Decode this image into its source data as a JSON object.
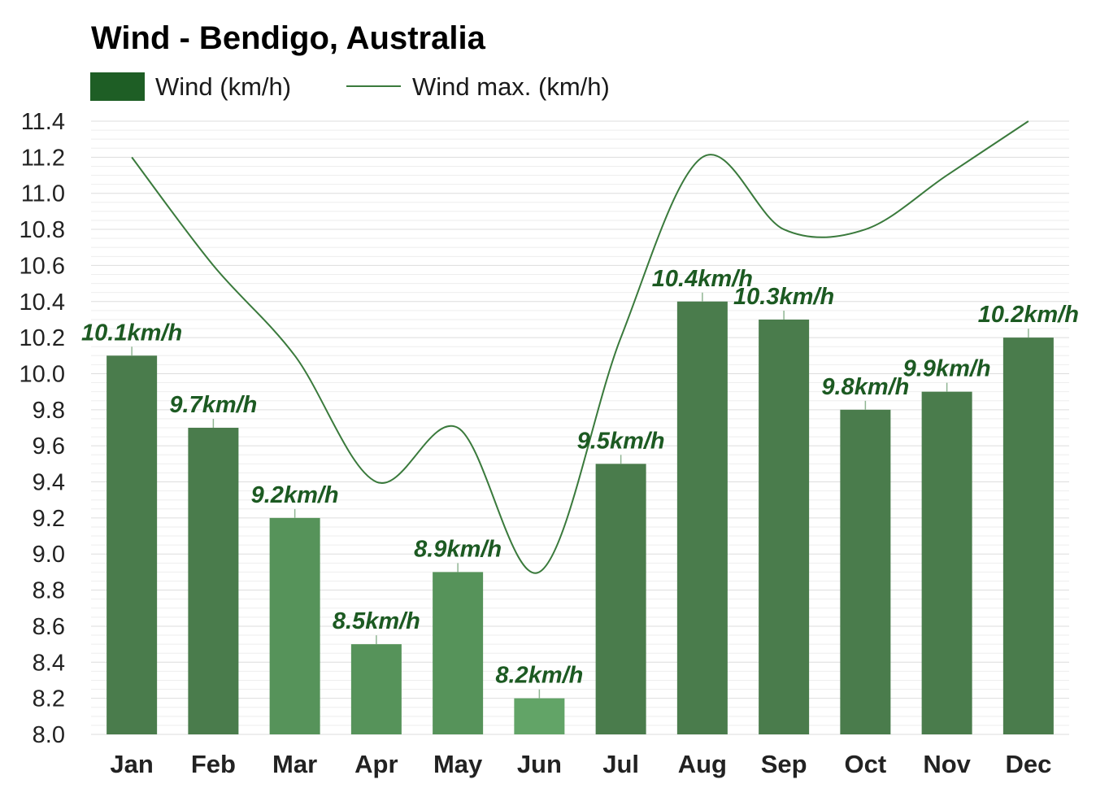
{
  "chart_data": {
    "type": "bar",
    "title": "Wind - Bendigo, Australia",
    "categories": [
      "Jan",
      "Feb",
      "Mar",
      "Apr",
      "May",
      "Jun",
      "Jul",
      "Aug",
      "Sep",
      "Oct",
      "Nov",
      "Dec"
    ],
    "series": [
      {
        "name": "Wind (km/h)",
        "type": "bar",
        "values": [
          10.1,
          9.7,
          9.2,
          8.5,
          8.9,
          8.2,
          9.5,
          10.4,
          10.3,
          9.8,
          9.9,
          10.2
        ],
        "labels": [
          "10.1km/h",
          "9.7km/h",
          "9.2km/h",
          "8.5km/h",
          "8.9km/h",
          "8.2km/h",
          "9.5km/h",
          "10.4km/h",
          "10.3km/h",
          "9.8km/h",
          "9.9km/h",
          "10.2km/h"
        ],
        "colors": [
          "#4a7c4c",
          "#4a7c4c",
          "#56935a",
          "#56935a",
          "#56935a",
          "#62a467",
          "#4a7c4c",
          "#4a7c4c",
          "#4a7c4c",
          "#4a7c4c",
          "#4a7c4c",
          "#4a7c4c"
        ]
      },
      {
        "name": "Wind max. (km/h)",
        "type": "line",
        "values": [
          11.2,
          10.6,
          10.1,
          9.4,
          9.7,
          8.9,
          10.2,
          11.2,
          10.8,
          10.8,
          11.1,
          11.4
        ],
        "color": "#3a7a3c"
      }
    ],
    "ylim": [
      8.0,
      11.4
    ],
    "yticks": [
      "8.0",
      "8.2",
      "8.4",
      "8.6",
      "8.8",
      "9.0",
      "9.2",
      "9.4",
      "9.6",
      "9.8",
      "10.0",
      "10.2",
      "10.4",
      "10.6",
      "10.8",
      "11.0",
      "11.2",
      "11.4"
    ],
    "grid": true,
    "legend_position": "top-left",
    "legend_swatch_color": "#1e5e25",
    "label_color": "#1c5a22"
  }
}
